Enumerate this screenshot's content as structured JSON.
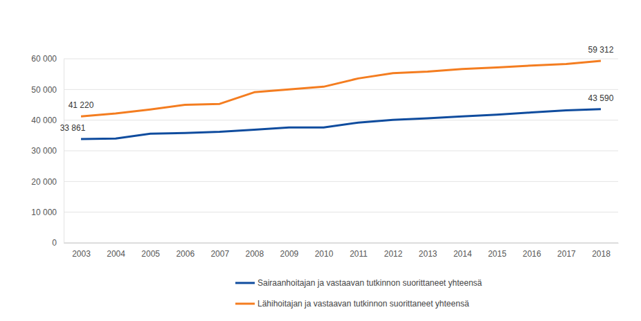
{
  "chart_data": {
    "type": "line",
    "categories": [
      "2003",
      "2004",
      "2005",
      "2006",
      "2007",
      "2008",
      "2009",
      "2010",
      "2011",
      "2012",
      "2013",
      "2014",
      "2015",
      "2016",
      "2017",
      "2018"
    ],
    "series": [
      {
        "name": "Sairaanhoitajan ja vastaavan tutkinnon suorittaneet yhteensä",
        "color": "#0f4c9e",
        "values": [
          33861,
          34000,
          35600,
          35800,
          36200,
          36900,
          37600,
          37600,
          39200,
          40100,
          40600,
          41200,
          41800,
          42500,
          43200,
          43590
        ],
        "value_labels": [
          "33 861",
          null,
          null,
          null,
          null,
          null,
          null,
          null,
          null,
          null,
          null,
          null,
          null,
          null,
          null,
          "43 590"
        ]
      },
      {
        "name": "Lähihoitajan ja vastaavan tutkinnon suorittaneet yhteensä",
        "color": "#f47d20",
        "values": [
          41220,
          42200,
          43500,
          45000,
          45300,
          49100,
          50000,
          50900,
          53600,
          55300,
          55800,
          56700,
          57200,
          57800,
          58300,
          59312
        ],
        "value_labels": [
          "41 220",
          null,
          null,
          null,
          null,
          null,
          null,
          null,
          null,
          null,
          null,
          null,
          null,
          null,
          null,
          "59 312"
        ]
      }
    ],
    "ylim": [
      0,
      60000
    ],
    "yticks": [
      {
        "value": 0,
        "label": "0"
      },
      {
        "value": 10000,
        "label": "10 000"
      },
      {
        "value": 20000,
        "label": "20 000"
      },
      {
        "value": 30000,
        "label": "30 000"
      },
      {
        "value": 40000,
        "label": "40 000"
      },
      {
        "value": 50000,
        "label": "50 000"
      },
      {
        "value": 60000,
        "label": "60 000"
      }
    ],
    "grid": true,
    "legend": "bottom"
  }
}
